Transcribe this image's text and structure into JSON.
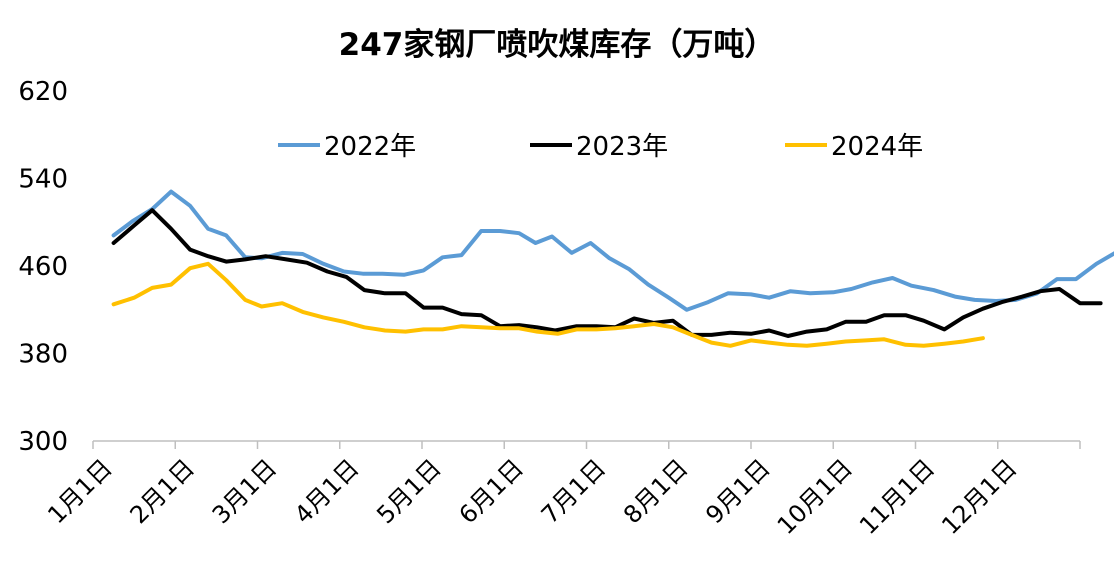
{
  "chart_data": {
    "type": "line",
    "title": "247家钢厂喷吹煤库存（万吨）",
    "ylim": [
      300,
      620
    ],
    "yticks": [
      300,
      380,
      460,
      540,
      620
    ],
    "x_ticks": [
      "1月1日",
      "2月1日",
      "3月1日",
      "4月1日",
      "5月1日",
      "6月1日",
      "7月1日",
      "8月1日",
      "9月1日",
      "10月1日",
      "11月1日",
      "12月1日"
    ],
    "x_domain": [
      1,
      13
    ],
    "grid": false,
    "legend_position": "top",
    "series": [
      {
        "name": "2022年",
        "color": "#5B9BD5",
        "points": [
          [
            1.25,
            488
          ],
          [
            1.48,
            501
          ],
          [
            1.72,
            512
          ],
          [
            1.95,
            528
          ],
          [
            2.18,
            515
          ],
          [
            2.4,
            494
          ],
          [
            2.62,
            488
          ],
          [
            2.85,
            468
          ],
          [
            3.05,
            467
          ],
          [
            3.3,
            472
          ],
          [
            3.55,
            471
          ],
          [
            3.8,
            462
          ],
          [
            4.05,
            455
          ],
          [
            4.28,
            453
          ],
          [
            4.52,
            453
          ],
          [
            4.78,
            452
          ],
          [
            5.02,
            456
          ],
          [
            5.25,
            468
          ],
          [
            5.48,
            470
          ],
          [
            5.72,
            492
          ],
          [
            5.95,
            492
          ],
          [
            6.18,
            490
          ],
          [
            6.38,
            481
          ],
          [
            6.58,
            487
          ],
          [
            6.82,
            472
          ],
          [
            7.05,
            481
          ],
          [
            7.28,
            467
          ],
          [
            7.52,
            457
          ],
          [
            7.75,
            443
          ],
          [
            8.0,
            431
          ],
          [
            8.22,
            420
          ],
          [
            8.48,
            427
          ],
          [
            8.72,
            435
          ],
          [
            9.0,
            434
          ],
          [
            9.22,
            431
          ],
          [
            9.48,
            437
          ],
          [
            9.72,
            435
          ],
          [
            10.0,
            436
          ],
          [
            10.22,
            439
          ],
          [
            10.48,
            445
          ],
          [
            10.72,
            449
          ],
          [
            10.95,
            442
          ],
          [
            11.22,
            438
          ],
          [
            11.48,
            432
          ],
          [
            11.72,
            429
          ],
          [
            11.98,
            428
          ],
          [
            12.22,
            429
          ],
          [
            12.48,
            435
          ],
          [
            12.72,
            448
          ],
          [
            12.95,
            448
          ],
          [
            13.2,
            462
          ],
          [
            13.45,
            473
          ]
        ]
      },
      {
        "name": "2023年",
        "color": "#000000",
        "points": [
          [
            1.25,
            481
          ],
          [
            1.5,
            497
          ],
          [
            1.72,
            511
          ],
          [
            1.95,
            494
          ],
          [
            2.18,
            475
          ],
          [
            2.4,
            469
          ],
          [
            2.62,
            464
          ],
          [
            2.85,
            466
          ],
          [
            3.1,
            469
          ],
          [
            3.35,
            466
          ],
          [
            3.6,
            463
          ],
          [
            3.85,
            455
          ],
          [
            4.08,
            450
          ],
          [
            4.3,
            438
          ],
          [
            4.55,
            435
          ],
          [
            4.8,
            435
          ],
          [
            5.02,
            422
          ],
          [
            5.25,
            422
          ],
          [
            5.48,
            416
          ],
          [
            5.72,
            415
          ],
          [
            5.95,
            405
          ],
          [
            6.18,
            406
          ],
          [
            6.4,
            404
          ],
          [
            6.62,
            401
          ],
          [
            6.88,
            405
          ],
          [
            7.12,
            405
          ],
          [
            7.35,
            404
          ],
          [
            7.58,
            412
          ],
          [
            7.82,
            408
          ],
          [
            8.05,
            410
          ],
          [
            8.28,
            397
          ],
          [
            8.52,
            397
          ],
          [
            8.75,
            399
          ],
          [
            9.0,
            398
          ],
          [
            9.22,
            401
          ],
          [
            9.45,
            396
          ],
          [
            9.68,
            400
          ],
          [
            9.92,
            402
          ],
          [
            10.15,
            409
          ],
          [
            10.4,
            409
          ],
          [
            10.62,
            415
          ],
          [
            10.88,
            415
          ],
          [
            11.1,
            410
          ],
          [
            11.35,
            402
          ],
          [
            11.58,
            413
          ],
          [
            11.82,
            421
          ],
          [
            12.05,
            427
          ],
          [
            12.3,
            432
          ],
          [
            12.52,
            437
          ],
          [
            12.75,
            439
          ],
          [
            13.0,
            426
          ],
          [
            13.25,
            426
          ]
        ]
      },
      {
        "name": "2024年",
        "color": "#FFC000",
        "points": [
          [
            1.25,
            425
          ],
          [
            1.5,
            431
          ],
          [
            1.72,
            440
          ],
          [
            1.95,
            443
          ],
          [
            2.18,
            458
          ],
          [
            2.4,
            462
          ],
          [
            2.62,
            447
          ],
          [
            2.85,
            429
          ],
          [
            3.05,
            423
          ],
          [
            3.3,
            426
          ],
          [
            3.55,
            418
          ],
          [
            3.8,
            413
          ],
          [
            4.05,
            409
          ],
          [
            4.3,
            404
          ],
          [
            4.55,
            401
          ],
          [
            4.8,
            400
          ],
          [
            5.02,
            402
          ],
          [
            5.25,
            402
          ],
          [
            5.48,
            405
          ],
          [
            5.72,
            404
          ],
          [
            5.95,
            403
          ],
          [
            6.18,
            403
          ],
          [
            6.4,
            400
          ],
          [
            6.65,
            398
          ],
          [
            6.88,
            402
          ],
          [
            7.12,
            402
          ],
          [
            7.35,
            403
          ],
          [
            7.58,
            405
          ],
          [
            7.82,
            407
          ],
          [
            8.05,
            404
          ],
          [
            8.28,
            397
          ],
          [
            8.52,
            390
          ],
          [
            8.75,
            387
          ],
          [
            9.0,
            392
          ],
          [
            9.22,
            390
          ],
          [
            9.45,
            388
          ],
          [
            9.68,
            387
          ],
          [
            9.92,
            389
          ],
          [
            10.15,
            391
          ],
          [
            10.4,
            392
          ],
          [
            10.62,
            393
          ],
          [
            10.88,
            388
          ],
          [
            11.1,
            387
          ],
          [
            11.35,
            389
          ],
          [
            11.58,
            391
          ],
          [
            11.82,
            394
          ]
        ]
      }
    ]
  }
}
